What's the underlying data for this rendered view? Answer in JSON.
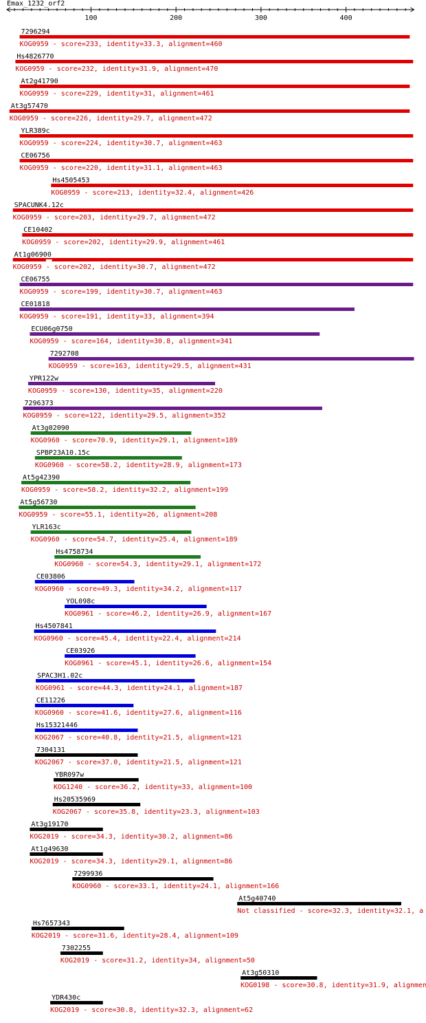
{
  "title": "Emax_1232_orf2",
  "axis": {
    "min": 1,
    "max": 480,
    "ticks": [
      100,
      200,
      300,
      400
    ]
  },
  "colors": {
    "red": "#e00000",
    "purple": "#6a1b8a",
    "green": "#1e7a1e",
    "blue": "#0000dd",
    "black": "#000000",
    "label": "#000000",
    "desc": "#cc0000"
  },
  "hits": [
    {
      "name": "7296294",
      "desc": "KOG0959 - score=233, identity=33.3, alignment=460",
      "start": 16,
      "end": 475,
      "color": "red"
    },
    {
      "name": "Hs4826770",
      "desc": "KOG0959 - score=232, identity=31.9, alignment=470",
      "start": 11,
      "end": 479,
      "color": "red"
    },
    {
      "name": "At2g41790",
      "desc": "KOG0959 - score=229, identity=31, alignment=461",
      "start": 16,
      "end": 475,
      "color": "red"
    },
    {
      "name": "At3g57470",
      "desc": "KOG0959 - score=226, identity=29.7, alignment=472",
      "start": 4,
      "end": 475,
      "color": "red"
    },
    {
      "name": "YLR389c",
      "desc": "KOG0959 - score=224, identity=30.7, alignment=463",
      "start": 16,
      "end": 479,
      "color": "red"
    },
    {
      "name": "CE06756",
      "desc": "KOG0959 - score=220, identity=31.1, alignment=463",
      "start": 16,
      "end": 479,
      "color": "red"
    },
    {
      "name": "Hs4505453",
      "desc": "KOG0959 - score=213, identity=32.4, alignment=426",
      "start": 53,
      "end": 479,
      "color": "red"
    },
    {
      "name": "SPACUNK4.12c",
      "desc": "KOG0959 - score=203, identity=29.7, alignment=472",
      "start": 8,
      "end": 479,
      "color": "red"
    },
    {
      "name": "CE10402",
      "desc": "KOG0959 - score=202, identity=29.9, alignment=461",
      "start": 19,
      "end": 479,
      "color": "red"
    },
    {
      "name": "At1g06900",
      "desc": "KOG0959 - score=202, identity=30.7, alignment=472",
      "start": 8,
      "end": 479,
      "color": "red",
      "gap": [
        47,
        54
      ]
    },
    {
      "name": "CE06755",
      "desc": "KOG0959 - score=199, identity=30.7, alignment=463",
      "start": 16,
      "end": 479,
      "color": "purple"
    },
    {
      "name": "CE01818",
      "desc": "KOG0959 - score=191, identity=33, alignment=394",
      "start": 16,
      "end": 410,
      "color": "purple"
    },
    {
      "name": "ECU06g0750",
      "desc": "KOG0959 - score=164, identity=30.8, alignment=341",
      "start": 28,
      "end": 369,
      "color": "purple"
    },
    {
      "name": "7292708",
      "desc": "KOG0959 - score=163, identity=29.5, alignment=431",
      "start": 50,
      "end": 480,
      "color": "purple"
    },
    {
      "name": "YPR122w",
      "desc": "KOG0959 - score=130, identity=35, alignment=220",
      "start": 26,
      "end": 246,
      "color": "purple"
    },
    {
      "name": "7296373",
      "desc": "KOG0959 - score=122, identity=29.5, alignment=352",
      "start": 20,
      "end": 372,
      "color": "purple"
    },
    {
      "name": "At3g02090",
      "desc": "KOG0960 - score=70.9, identity=29.1, alignment=189",
      "start": 29,
      "end": 218,
      "color": "green"
    },
    {
      "name": "SPBP23A10.15c",
      "desc": "KOG0960 - score=58.2, identity=28.9, alignment=173",
      "start": 34,
      "end": 207,
      "color": "green"
    },
    {
      "name": "At5g42390",
      "desc": "KOG0959 - score=58.2, identity=32.2, alignment=199",
      "start": 18,
      "end": 217,
      "color": "green"
    },
    {
      "name": "At5g56730",
      "desc": "KOG0959 - score=55.1, identity=26, alignment=208",
      "start": 15,
      "end": 223,
      "color": "green"
    },
    {
      "name": "YLR163c",
      "desc": "KOG0960 - score=54.7, identity=25.4, alignment=189",
      "start": 29,
      "end": 218,
      "color": "green"
    },
    {
      "name": "Hs4758734",
      "desc": "KOG0960 - score=54.3, identity=29.1, alignment=172",
      "start": 57,
      "end": 229,
      "color": "green"
    },
    {
      "name": "CE03806",
      "desc": "KOG0960 - score=49.3, identity=34.2, alignment=117",
      "start": 34,
      "end": 151,
      "color": "blue"
    },
    {
      "name": "YOL098c",
      "desc": "KOG0961 - score=46.2, identity=26.9, alignment=167",
      "start": 69,
      "end": 236,
      "color": "blue"
    },
    {
      "name": "Hs4507841",
      "desc": "KOG0960 - score=45.4, identity=22.4, alignment=214",
      "start": 33,
      "end": 247,
      "color": "blue"
    },
    {
      "name": "CE03926",
      "desc": "KOG0961 - score=45.1, identity=26.6, alignment=154",
      "start": 69,
      "end": 223,
      "color": "blue"
    },
    {
      "name": "SPAC3H1.02c",
      "desc": "KOG0961 - score=44.3, identity=24.1, alignment=187",
      "start": 35,
      "end": 222,
      "color": "blue"
    },
    {
      "name": "CE11226",
      "desc": "KOG0960 - score=41.6, identity=27.6, alignment=116",
      "start": 34,
      "end": 150,
      "color": "blue"
    },
    {
      "name": "Hs15321446",
      "desc": "KOG2067 - score=40.8, identity=21.5, alignment=121",
      "start": 34,
      "end": 155,
      "color": "blue"
    },
    {
      "name": "7304131",
      "desc": "KOG2067 - score=37.0, identity=21.5, alignment=121",
      "start": 34,
      "end": 155,
      "color": "black"
    },
    {
      "name": "YBR097w",
      "desc": "KOG1240 - score=36.2, identity=33, alignment=100",
      "start": 56,
      "end": 156,
      "color": "black"
    },
    {
      "name": "Hs20535969",
      "desc": "KOG2067 - score=35.8, identity=23.3, alignment=103",
      "start": 55,
      "end": 158,
      "color": "black"
    },
    {
      "name": "At3g19170",
      "desc": "KOG2019 - score=34.3, identity=30.2, alignment=86",
      "start": 28,
      "end": 114,
      "color": "black"
    },
    {
      "name": "At1g49630",
      "desc": "KOG2019 - score=34.3, identity=29.1, alignment=86",
      "start": 28,
      "end": 114,
      "color": "black"
    },
    {
      "name": "7299936",
      "desc": "KOG0960 - score=33.1, identity=24.1, alignment=166",
      "start": 78,
      "end": 244,
      "color": "black"
    },
    {
      "name": "At5g40740",
      "desc": "Not classified - score=32.3, identity=32.1, a",
      "start": 272,
      "end": 465,
      "color": "black"
    },
    {
      "name": "Hs7657343",
      "desc": "KOG2019 - score=31.6, identity=28.4, alignment=109",
      "start": 30,
      "end": 139,
      "color": "black"
    },
    {
      "name": "7302255",
      "desc": "KOG2019 - score=31.2, identity=34, alignment=50",
      "start": 64,
      "end": 114,
      "color": "black"
    },
    {
      "name": "At3g50310",
      "desc": "KOG0198 - score=30.8, identity=31.9, alignmen",
      "start": 276,
      "end": 366,
      "color": "black"
    },
    {
      "name": "YDR430c",
      "desc": "KOG2019 - score=30.8, identity=32.3, alignment=62",
      "start": 52,
      "end": 114,
      "color": "black"
    }
  ]
}
